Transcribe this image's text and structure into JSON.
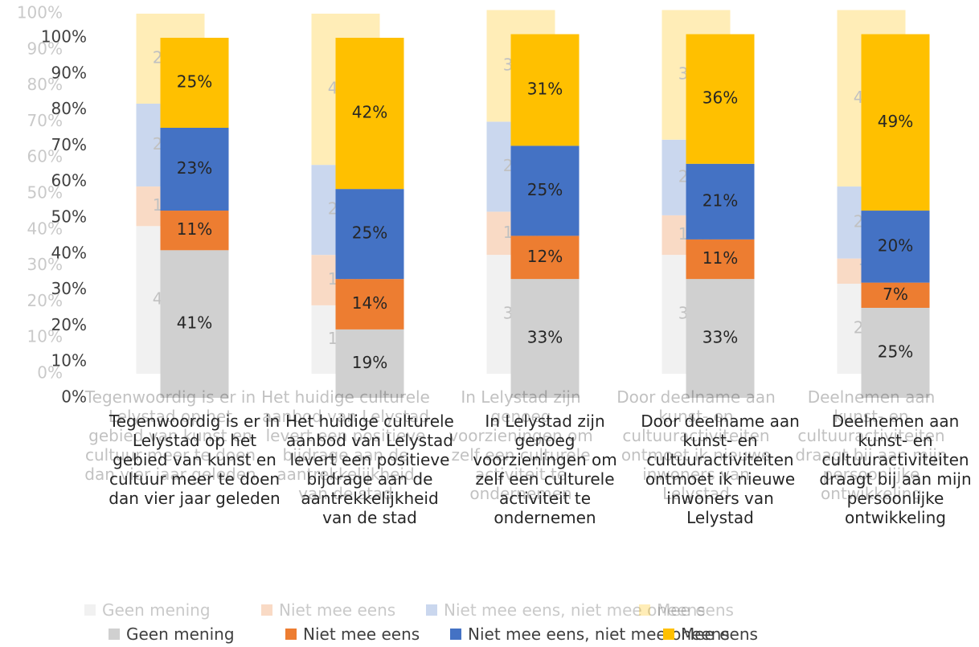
{
  "chart_data": {
    "type": "bar",
    "stacked": true,
    "categories": [
      "Tegenwoordig is er in Lelystad op het gebied van kunst en cultuur meer te doen dan vier jaar geleden",
      "Het huidige culturele aanbod van Lelystad levert een positieve bijdrage aan de aantrekkelijkheid van de stad",
      "In Lelystad zijn genoeg voorzieningen om zelf een culturele activiteit te ondernemen",
      "Door deelname aan kunst- en cultuuractiviteiten ontmoet ik nieuwe inwoners van Lelystad",
      "Deelnemen aan kunst- en cultuuractiviteiten draagt bij aan mijn persoonlijke ontwikkeling"
    ],
    "series": [
      {
        "name": "Geen mening",
        "color": "#d0d0d0",
        "values": [
          41,
          19,
          33,
          33,
          25
        ],
        "value_labels": [
          "41%",
          "19%",
          "33%",
          "33%",
          "25%"
        ]
      },
      {
        "name": "Niet mee eens",
        "color": "#ed7d31",
        "values": [
          11,
          14,
          12,
          11,
          7
        ],
        "value_labels": [
          "11%",
          "14%",
          "12%",
          "11%",
          "7%"
        ]
      },
      {
        "name": "Niet mee eens, niet mee oneens",
        "color": "#4472c4",
        "values": [
          23,
          25,
          25,
          21,
          20
        ],
        "value_labels": [
          "23%",
          "25%",
          "25%",
          "21%",
          "20%"
        ]
      },
      {
        "name": "Mee eens",
        "color": "#ffc000",
        "values": [
          25,
          42,
          31,
          36,
          49
        ],
        "value_labels": [
          "25%",
          "42%",
          "31%",
          "36%",
          "49%"
        ]
      }
    ],
    "ylim": [
      0,
      100
    ],
    "yticks": [
      {
        "value": 0,
        "label": "0%"
      },
      {
        "value": 10,
        "label": "10%"
      },
      {
        "value": 20,
        "label": "20%"
      },
      {
        "value": 30,
        "label": "30%"
      },
      {
        "value": 40,
        "label": "40%"
      },
      {
        "value": 50,
        "label": "50%"
      },
      {
        "value": 60,
        "label": "60%"
      },
      {
        "value": 70,
        "label": "70%"
      },
      {
        "value": 80,
        "label": "80%"
      },
      {
        "value": 90,
        "label": "90%"
      },
      {
        "value": 100,
        "label": "100%"
      }
    ],
    "legend": "bottom"
  }
}
